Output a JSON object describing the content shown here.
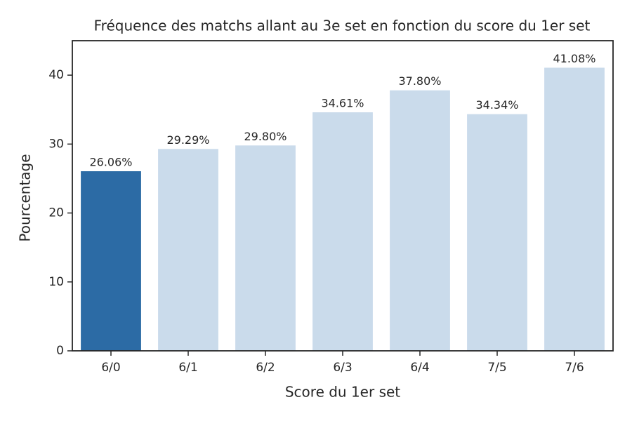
{
  "chart_data": {
    "type": "bar",
    "title": "Fréquence des matchs allant au 3e set en fonction du score du 1er set",
    "x_label": "Score du 1er set",
    "y_label": "Pourcentage",
    "categories": [
      "6/0",
      "6/1",
      "6/2",
      "6/3",
      "6/4",
      "7/5",
      "7/6"
    ],
    "values": [
      26.06,
      29.29,
      29.8,
      34.61,
      37.8,
      34.34,
      41.08
    ],
    "value_labels": [
      "26.06%",
      "29.29%",
      "29.80%",
      "34.61%",
      "37.80%",
      "34.34%",
      "41.08%"
    ],
    "colors": [
      "#2c6ba5",
      "#cadbeb",
      "#cadbeb",
      "#cadbeb",
      "#cadbeb",
      "#cadbeb",
      "#cadbeb"
    ],
    "ylim": [
      0,
      45
    ],
    "yticks": [
      0,
      10,
      20,
      30,
      40
    ],
    "grid": false
  }
}
